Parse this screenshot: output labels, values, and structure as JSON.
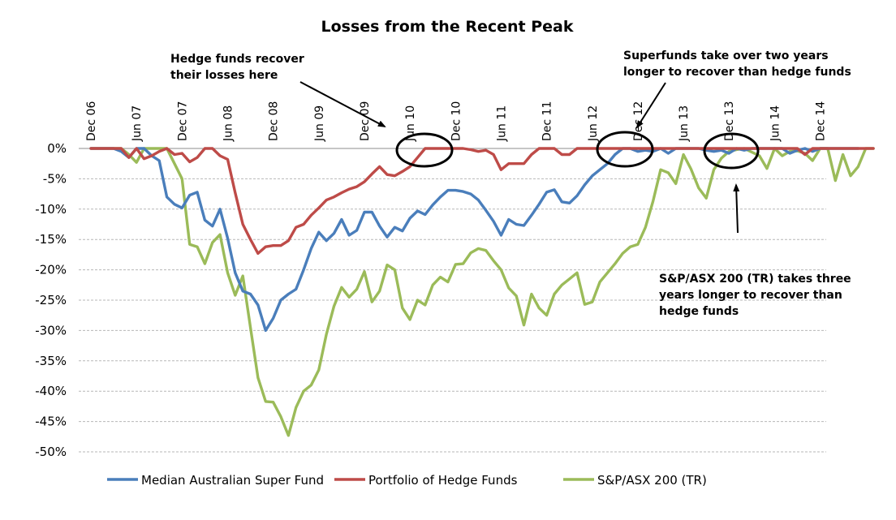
{
  "chart_data": {
    "type": "line",
    "title": "Losses from the Recent Peak",
    "xlabel": "",
    "ylabel": "",
    "ylim": [
      -50,
      0
    ],
    "y_ticks": [
      0,
      -5,
      -10,
      -15,
      -20,
      -25,
      -30,
      -35,
      -40,
      -45,
      -50
    ],
    "y_tick_labels": [
      "0%",
      "-5%",
      "-10%",
      "-15%",
      "-20%",
      "-25%",
      "-30%",
      "-35%",
      "-40%",
      "-45%",
      "-50%"
    ],
    "x_tick_labels": [
      "Dec 06",
      "Jun 07",
      "Dec 07",
      "Jun 08",
      "Dec 08",
      "Jun 09",
      "Dec 09",
      "Jun 10",
      "Dec 10",
      "Jun 11",
      "Dec 11",
      "Jun 12",
      "Dec 12",
      "Jun 13",
      "Dec 13",
      "Jun 14",
      "Dec 14"
    ],
    "x_start": "Dec 06",
    "x_frequency": "monthly",
    "grid": true,
    "legend_position": "bottom",
    "series": [
      {
        "name": "Median Australian Super Fund",
        "color": "#4a7ebb",
        "values": [
          0,
          0,
          0,
          0,
          -0.5,
          -1.5,
          0,
          0,
          -1.2,
          -2,
          -8,
          -9.2,
          -9.8,
          -7.7,
          -7.2,
          -11.8,
          -12.8,
          -10,
          -14.8,
          -20.5,
          -23.5,
          -24,
          -25.8,
          -30,
          -28,
          -25,
          -24,
          -23.2,
          -20,
          -16.5,
          -13.8,
          -15.2,
          -14,
          -11.7,
          -14.3,
          -13.5,
          -10.5,
          -10.5,
          -12.8,
          -14.6,
          -13,
          -13.6,
          -11.5,
          -10.3,
          -10.9,
          -9.3,
          -8,
          -6.9,
          -6.9,
          -7.1,
          -7.5,
          -8.5,
          -10.2,
          -12,
          -14.3,
          -11.7,
          -12.5,
          -12.7,
          -11,
          -9.2,
          -7.2,
          -6.8,
          -8.8,
          -9,
          -7.8,
          -6,
          -4.5,
          -3.5,
          -2.5,
          -1,
          0,
          0,
          -0.5,
          -0.3,
          -0.5,
          0,
          -0.8,
          0,
          0,
          0,
          0,
          -0.3,
          -0.5,
          -0.3,
          -0.8,
          0,
          -0.3,
          0,
          0,
          0,
          0,
          0,
          -0.8,
          -0.3,
          0,
          -0.5,
          0,
          0,
          0,
          0,
          0,
          0
        ]
      },
      {
        "name": "Portfolio of Hedge Funds",
        "color": "#be4b48",
        "values": [
          0,
          0,
          0,
          0,
          0,
          -1.5,
          0,
          -1.7,
          -1.2,
          -0.5,
          0,
          -1,
          -0.8,
          -2.2,
          -1.5,
          0,
          0,
          -1.2,
          -1.8,
          -7.3,
          -12.5,
          -15,
          -17.3,
          -16.2,
          -16,
          -16,
          -15.2,
          -13,
          -12.5,
          -11,
          -9.8,
          -8.5,
          -8,
          -7.3,
          -6.7,
          -6.3,
          -5.5,
          -4.2,
          -3,
          -4.3,
          -4.5,
          -3.8,
          -3,
          -1.5,
          0,
          0,
          0,
          0,
          0,
          0,
          -0.2,
          -0.5,
          -0.3,
          -1,
          -3.5,
          -2.5,
          -2.5,
          -2.5,
          -1,
          0,
          0,
          0,
          -1,
          -1,
          0,
          0,
          0,
          0,
          0,
          0,
          0,
          0,
          0,
          0,
          0,
          0,
          0,
          0,
          0,
          0,
          0,
          0,
          0,
          0,
          0,
          0,
          0,
          0,
          0,
          0,
          0,
          0,
          0,
          0,
          -1,
          0,
          0,
          0,
          0,
          0,
          0,
          0,
          0,
          0
        ]
      },
      {
        "name": "S&P/ASX 200 (TR)",
        "color": "#9bbb59",
        "values": [
          0,
          0,
          0,
          0,
          0,
          -1,
          -2.3,
          0,
          0,
          0,
          0,
          -2.5,
          -5,
          -15.8,
          -16.2,
          -19,
          -15.5,
          -14.2,
          -20.5,
          -24.2,
          -21,
          -29.5,
          -37.8,
          -41.7,
          -41.8,
          -44.2,
          -47.3,
          -42.7,
          -40,
          -39,
          -36.5,
          -30.6,
          -26,
          -22.9,
          -24.5,
          -23.2,
          -20.3,
          -25.3,
          -23.5,
          -19.2,
          -20,
          -26.3,
          -28.2,
          -25,
          -25.8,
          -22.5,
          -21.2,
          -22,
          -19.1,
          -19,
          -17.2,
          -16.5,
          -16.8,
          -18.5,
          -20,
          -23,
          -24.3,
          -29.1,
          -24,
          -26.3,
          -27.5,
          -24,
          -22.5,
          -21.5,
          -20.5,
          -25.7,
          -25.3,
          -22,
          -20.5,
          -19,
          -17.3,
          -16.2,
          -15.8,
          -13,
          -8.7,
          -3.5,
          -4,
          -5.8,
          -1,
          -3.4,
          -6.5,
          -8.2,
          -3.5,
          -1.6,
          -0.5,
          -0.2,
          0,
          -0.6,
          -1.2,
          -3.3,
          0,
          -1.2,
          -0.5,
          -0.4,
          -0.8,
          -2,
          0,
          0,
          -5.3,
          -1,
          -4.5,
          -3,
          0,
          0
        ]
      }
    ],
    "annotations": [
      {
        "name": "hedge-funds-note",
        "lines": [
          "Hedge funds recover",
          "their losses here"
        ]
      },
      {
        "name": "superfunds-note",
        "lines": [
          "Superfunds take over two years",
          "longer to recover than hedge funds"
        ]
      },
      {
        "name": "asx-note",
        "lines": [
          "S&P/ASX 200 (TR) takes three",
          "years longer to recover than",
          "hedge funds"
        ]
      }
    ]
  }
}
